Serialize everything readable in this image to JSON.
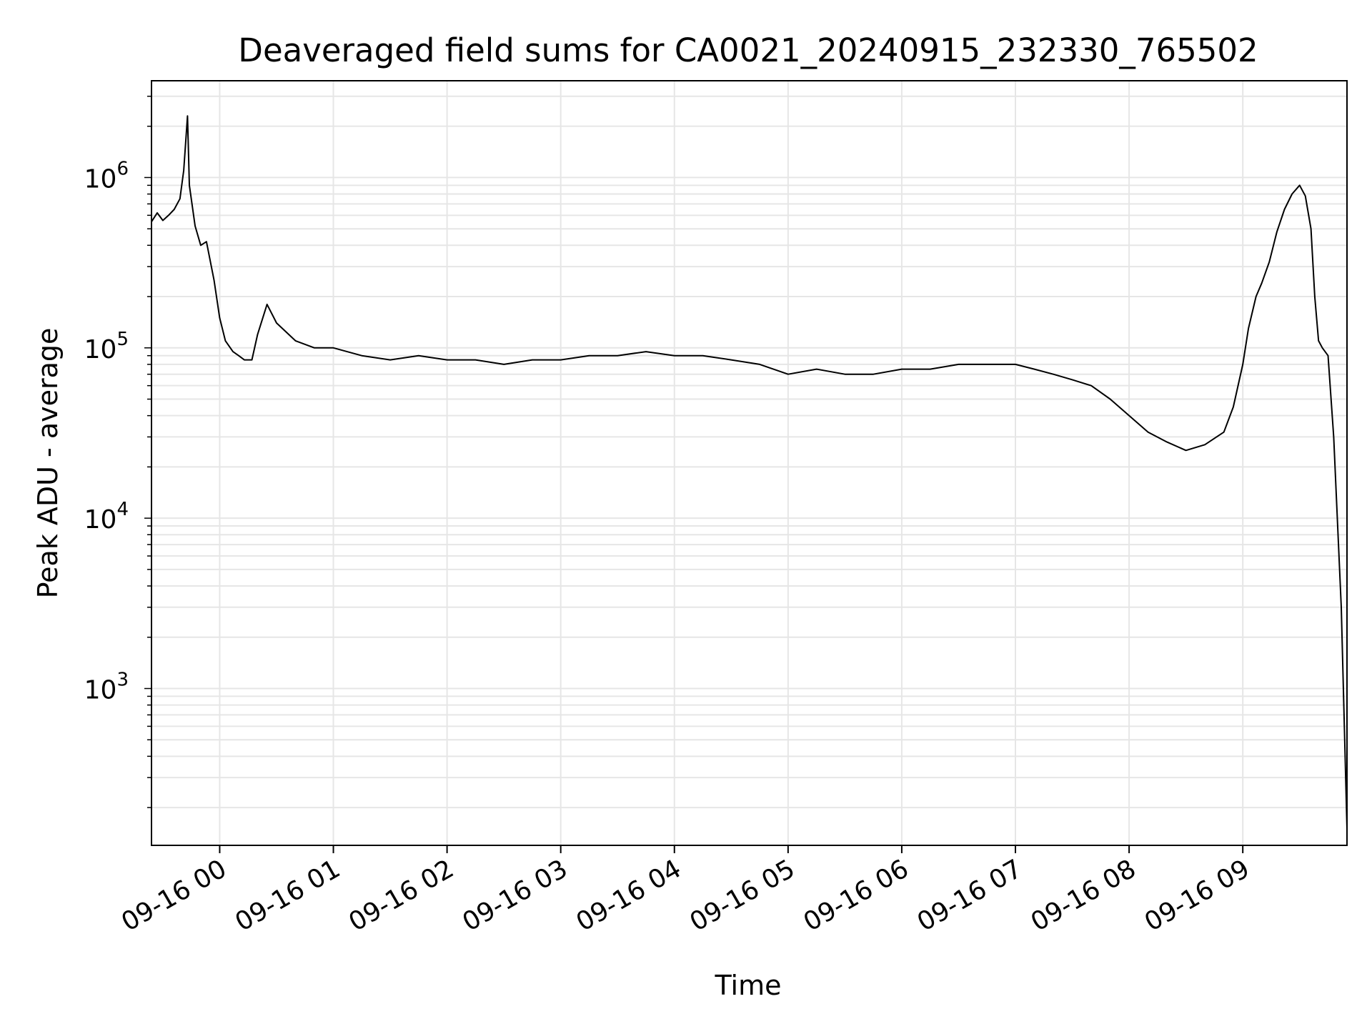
{
  "chart_data": {
    "type": "line",
    "title": "Deaveraged field sums for CA0021_20240915_232330_765502",
    "xlabel": "Time",
    "ylabel": "Peak ADU - average",
    "yscale": "log",
    "ylim": [
      120,
      3700000
    ],
    "xlim": [
      "09-15 23:24",
      "09-16 09:55"
    ],
    "grid": true,
    "line_color": "#000000",
    "grid_color": "#e6e6e6",
    "x_ticks": [
      {
        "t": "09-16 00:00",
        "label": "09-16 00"
      },
      {
        "t": "09-16 01:00",
        "label": "09-16 01"
      },
      {
        "t": "09-16 02:00",
        "label": "09-16 02"
      },
      {
        "t": "09-16 03:00",
        "label": "09-16 03"
      },
      {
        "t": "09-16 04:00",
        "label": "09-16 04"
      },
      {
        "t": "09-16 05:00",
        "label": "09-16 05"
      },
      {
        "t": "09-16 06:00",
        "label": "09-16 06"
      },
      {
        "t": "09-16 07:00",
        "label": "09-16 07"
      },
      {
        "t": "09-16 08:00",
        "label": "09-16 08"
      },
      {
        "t": "09-16 09:00",
        "label": "09-16 09"
      }
    ],
    "y_ticks": [
      {
        "value": 1000,
        "base": "10",
        "exp": "3"
      },
      {
        "value": 10000,
        "base": "10",
        "exp": "4"
      },
      {
        "value": 100000,
        "base": "10",
        "exp": "5"
      },
      {
        "value": 1000000,
        "base": "10",
        "exp": "6"
      }
    ],
    "series": [
      {
        "points": [
          [
            "09-15 23:24",
            550000
          ],
          [
            "09-15 23:27",
            620000
          ],
          [
            "09-15 23:30",
            560000
          ],
          [
            "09-15 23:33",
            600000
          ],
          [
            "09-15 23:36",
            650000
          ],
          [
            "09-15 23:39",
            750000
          ],
          [
            "09-15 23:41",
            1100000
          ],
          [
            "09-15 23:43",
            2300000
          ],
          [
            "09-15 23:44",
            900000
          ],
          [
            "09-15 23:47",
            520000
          ],
          [
            "09-15 23:50",
            400000
          ],
          [
            "09-15 23:53",
            420000
          ],
          [
            "09-15 23:57",
            250000
          ],
          [
            "09-16 00:00",
            150000
          ],
          [
            "09-16 00:03",
            110000
          ],
          [
            "09-16 00:07",
            95000
          ],
          [
            "09-16 00:10",
            90000
          ],
          [
            "09-16 00:13",
            85000
          ],
          [
            "09-16 00:17",
            85000
          ],
          [
            "09-16 00:20",
            120000
          ],
          [
            "09-16 00:25",
            180000
          ],
          [
            "09-16 00:30",
            140000
          ],
          [
            "09-16 00:40",
            110000
          ],
          [
            "09-16 00:50",
            100000
          ],
          [
            "09-16 01:00",
            100000
          ],
          [
            "09-16 01:15",
            90000
          ],
          [
            "09-16 01:30",
            85000
          ],
          [
            "09-16 01:45",
            90000
          ],
          [
            "09-16 02:00",
            85000
          ],
          [
            "09-16 02:15",
            85000
          ],
          [
            "09-16 02:30",
            80000
          ],
          [
            "09-16 02:45",
            85000
          ],
          [
            "09-16 03:00",
            85000
          ],
          [
            "09-16 03:15",
            90000
          ],
          [
            "09-16 03:30",
            90000
          ],
          [
            "09-16 03:45",
            95000
          ],
          [
            "09-16 04:00",
            90000
          ],
          [
            "09-16 04:15",
            90000
          ],
          [
            "09-16 04:30",
            85000
          ],
          [
            "09-16 04:45",
            80000
          ],
          [
            "09-16 05:00",
            70000
          ],
          [
            "09-16 05:15",
            75000
          ],
          [
            "09-16 05:30",
            70000
          ],
          [
            "09-16 05:45",
            70000
          ],
          [
            "09-16 06:00",
            75000
          ],
          [
            "09-16 06:15",
            75000
          ],
          [
            "09-16 06:30",
            80000
          ],
          [
            "09-16 06:45",
            80000
          ],
          [
            "09-16 07:00",
            80000
          ],
          [
            "09-16 07:10",
            75000
          ],
          [
            "09-16 07:20",
            70000
          ],
          [
            "09-16 07:30",
            65000
          ],
          [
            "09-16 07:40",
            60000
          ],
          [
            "09-16 07:50",
            50000
          ],
          [
            "09-16 08:00",
            40000
          ],
          [
            "09-16 08:10",
            32000
          ],
          [
            "09-16 08:20",
            28000
          ],
          [
            "09-16 08:30",
            25000
          ],
          [
            "09-16 08:40",
            27000
          ],
          [
            "09-16 08:50",
            32000
          ],
          [
            "09-16 08:55",
            45000
          ],
          [
            "09-16 09:00",
            80000
          ],
          [
            "09-16 09:03",
            130000
          ],
          [
            "09-16 09:07",
            200000
          ],
          [
            "09-16 09:10",
            240000
          ],
          [
            "09-16 09:14",
            320000
          ],
          [
            "09-16 09:18",
            480000
          ],
          [
            "09-16 09:22",
            650000
          ],
          [
            "09-16 09:26",
            800000
          ],
          [
            "09-16 09:30",
            900000
          ],
          [
            "09-16 09:33",
            780000
          ],
          [
            "09-16 09:36",
            500000
          ],
          [
            "09-16 09:38",
            200000
          ],
          [
            "09-16 09:40",
            110000
          ],
          [
            "09-16 09:42",
            100000
          ],
          [
            "09-16 09:45",
            90000
          ],
          [
            "09-16 09:48",
            30000
          ],
          [
            "09-16 09:52",
            3000
          ],
          [
            "09-16 09:55",
            150
          ]
        ]
      }
    ]
  }
}
